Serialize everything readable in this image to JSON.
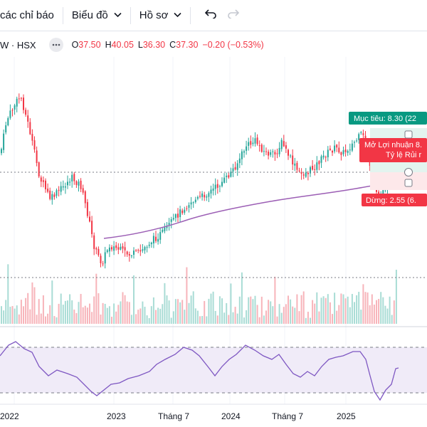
{
  "toolbar": {
    "indicators_label": "các chỉ báo",
    "chart_label": "Biểu đồ",
    "profile_label": "Hồ sơ"
  },
  "legend": {
    "symbol": "W · HSX",
    "o_label": "O",
    "o_value": "37.50",
    "h_label": "H",
    "h_value": "40.05",
    "l_label": "L",
    "l_value": "36.30",
    "c_label": "C",
    "c_value": "37.30",
    "change": "−0.20 (−0.53%)"
  },
  "position_tool": {
    "target_label": "Mục tiêu: 8.30 (22",
    "profit_label_line1": "Mở Lợi nhuận 8.",
    "profit_label_line2": "Tỷ lệ Rủi r",
    "stop_label": "Dừng: 2.55 (6."
  },
  "time_axis": {
    "labels": [
      "2022",
      "2023",
      "Tháng 7",
      "2024",
      "Tháng 7",
      "2025"
    ]
  },
  "colors": {
    "up": "#26a69a",
    "down": "#f23645",
    "ma": "#9c5fb5",
    "rsi": "#7e57c2",
    "rsi_band": "#ede7f6",
    "target": "#089981",
    "stop": "#f23645"
  }
}
